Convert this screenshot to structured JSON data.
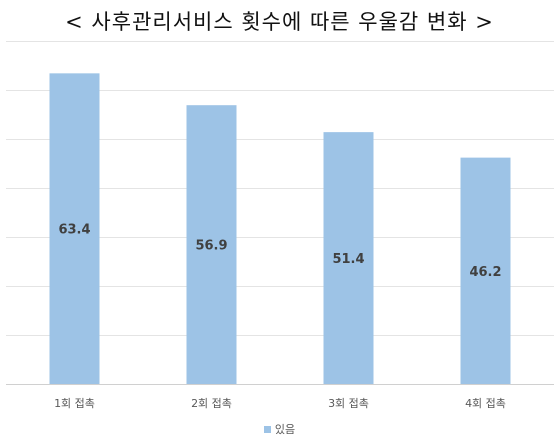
{
  "title": "< 사후관리서비스 횟수에 따른 우울감 변화 >",
  "chart_data": {
    "type": "bar",
    "categories": [
      "1회 접촉",
      "2회 접촉",
      "3회 접촉",
      "4회 접촉"
    ],
    "series": [
      {
        "name": "있음",
        "values": [
          63.4,
          56.9,
          51.4,
          46.2
        ],
        "color": "#9DC3E6"
      }
    ],
    "ylim": [
      0,
      70
    ],
    "grid": true,
    "legend": "bottom",
    "data_labels": true
  }
}
